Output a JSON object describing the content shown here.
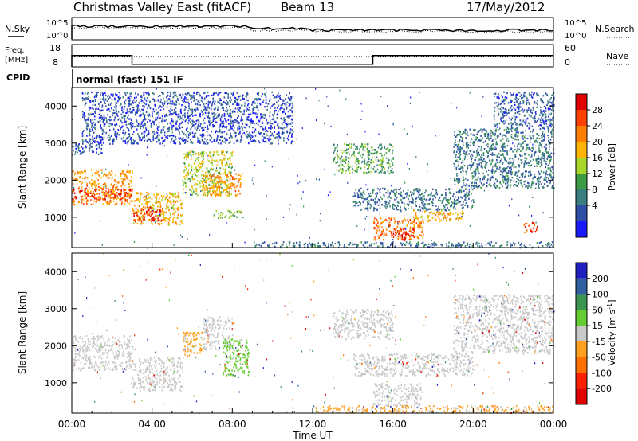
{
  "header": {
    "title": "Christmas Valley East (fitACF)",
    "beam": "Beam 13",
    "date": "17/May/2012"
  },
  "summary_panels": {
    "nsky_label": "N.Sky",
    "nsearch_label": "N.Search",
    "left_scale": [
      "10^5",
      "10^0"
    ],
    "right_scale": [
      "10^5",
      "10^0"
    ],
    "freq_label": [
      "Freq.",
      "[MHz]"
    ],
    "freq_ticks": [
      "18",
      "8"
    ],
    "nave_label": "Nave",
    "nave_ticks": [
      "60",
      "0"
    ],
    "cpid_label": "CPID",
    "cpid_value": "normal (fast) 151 IF"
  },
  "chart_data": [
    {
      "type": "heatmap",
      "title": "",
      "xlabel": "Time UT",
      "ylabel": "Slant Range [km]",
      "xlim": [
        "00:00",
        "24:00"
      ],
      "ylim": [
        180,
        4500
      ],
      "x_ticks": [
        "00:00",
        "04:00",
        "08:00",
        "12:00",
        "16:00",
        "20:00",
        "00:00"
      ],
      "y_ticks": [
        "1000",
        "2000",
        "3000",
        "4000"
      ],
      "colorbar": {
        "label": "Power [dB]",
        "ticks": [
          "4",
          "8",
          "12",
          "16",
          "20",
          "24",
          "28"
        ],
        "colors": [
          "#1a1aff",
          "#2e4ea8",
          "#3a7f7f",
          "#3e9b45",
          "#a9d62b",
          "#ffb400",
          "#ff8000",
          "#ff4000",
          "#e00000"
        ]
      },
      "echo_regions": [
        {
          "t0": 0.0,
          "t1": 3.0,
          "r0": 1350,
          "r1": 2300,
          "value": 22
        },
        {
          "t0": 0.0,
          "t1": 3.0,
          "r0": 1500,
          "r1": 1800,
          "value": 28
        },
        {
          "t0": 0.0,
          "t1": 1.5,
          "r0": 2700,
          "r1": 3000,
          "value": 6
        },
        {
          "t0": 3.0,
          "t1": 5.5,
          "r0": 800,
          "r1": 1700,
          "value": 20
        },
        {
          "t0": 3.0,
          "t1": 4.5,
          "r0": 900,
          "r1": 1300,
          "value": 28
        },
        {
          "t0": 5.5,
          "t1": 8.0,
          "r0": 1600,
          "r1": 2800,
          "value": 16
        },
        {
          "t0": 6.5,
          "t1": 8.5,
          "r0": 1600,
          "r1": 2200,
          "value": 22
        },
        {
          "t0": 7.0,
          "t1": 8.5,
          "r0": 1000,
          "r1": 1200,
          "value": 14
        },
        {
          "t0": 0.5,
          "t1": 11.0,
          "r0": 3000,
          "r1": 4400,
          "value": 5
        },
        {
          "t0": 13.0,
          "t1": 16.0,
          "r0": 2200,
          "r1": 3000,
          "value": 12
        },
        {
          "t0": 14.0,
          "t1": 20.0,
          "r0": 1200,
          "r1": 1800,
          "value": 8
        },
        {
          "t0": 15.0,
          "t1": 17.5,
          "r0": 400,
          "r1": 1000,
          "value": 24
        },
        {
          "t0": 16.0,
          "t1": 17.0,
          "r0": 400,
          "r1": 700,
          "value": 28
        },
        {
          "t0": 17.0,
          "t1": 19.5,
          "r0": 900,
          "r1": 1200,
          "value": 20
        },
        {
          "t0": 19.0,
          "t1": 24.0,
          "r0": 1800,
          "r1": 3400,
          "value": 8
        },
        {
          "t0": 21.0,
          "t1": 24.0,
          "r0": 3400,
          "r1": 4400,
          "value": 6
        },
        {
          "t0": 22.5,
          "t1": 23.2,
          "r0": 600,
          "r1": 900,
          "value": 26
        },
        {
          "t0": 9.0,
          "t1": 24.0,
          "r0": 200,
          "r1": 350,
          "value": 8
        }
      ]
    },
    {
      "type": "heatmap",
      "title": "",
      "xlabel": "Time UT",
      "ylabel": "Slant Range [km]",
      "xlim": [
        "00:00",
        "24:00"
      ],
      "ylim": [
        180,
        4500
      ],
      "x_ticks": [
        "00:00",
        "04:00",
        "08:00",
        "12:00",
        "16:00",
        "20:00",
        "00:00"
      ],
      "y_ticks": [
        "1000",
        "2000",
        "3000",
        "4000"
      ],
      "colorbar": {
        "label": "Velocity [m s^-1]",
        "ticks": [
          "200",
          "100",
          "50",
          "15",
          "-15",
          "-50",
          "-100",
          "-200"
        ],
        "colors": [
          "#2020c0",
          "#3060a0",
          "#3c9650",
          "#66cc33",
          "#c8c8c8",
          "#ffa020",
          "#ff7000",
          "#ff2000",
          "#e00000"
        ]
      },
      "echo_regions": [
        {
          "t0": 0.0,
          "t1": 3.0,
          "r0": 1350,
          "r1": 2300,
          "value": 0
        },
        {
          "t0": 3.0,
          "t1": 5.5,
          "r0": 800,
          "r1": 1700,
          "value": 0
        },
        {
          "t0": 5.5,
          "t1": 6.5,
          "r0": 1700,
          "r1": 2400,
          "value": -40
        },
        {
          "t0": 6.5,
          "t1": 8.0,
          "r0": 1900,
          "r1": 2800,
          "value": 0
        },
        {
          "t0": 7.5,
          "t1": 8.8,
          "r0": 1200,
          "r1": 2200,
          "value": 45
        },
        {
          "t0": 13.0,
          "t1": 16.0,
          "r0": 2200,
          "r1": 3000,
          "value": 0
        },
        {
          "t0": 14.0,
          "t1": 20.0,
          "r0": 1200,
          "r1": 1800,
          "value": 0
        },
        {
          "t0": 15.0,
          "t1": 17.5,
          "r0": 400,
          "r1": 1000,
          "value": 0
        },
        {
          "t0": 19.0,
          "t1": 24.0,
          "r0": 1800,
          "r1": 3400,
          "value": 0
        },
        {
          "t0": 12.0,
          "t1": 24.0,
          "r0": 200,
          "r1": 400,
          "value": -40
        }
      ]
    }
  ]
}
